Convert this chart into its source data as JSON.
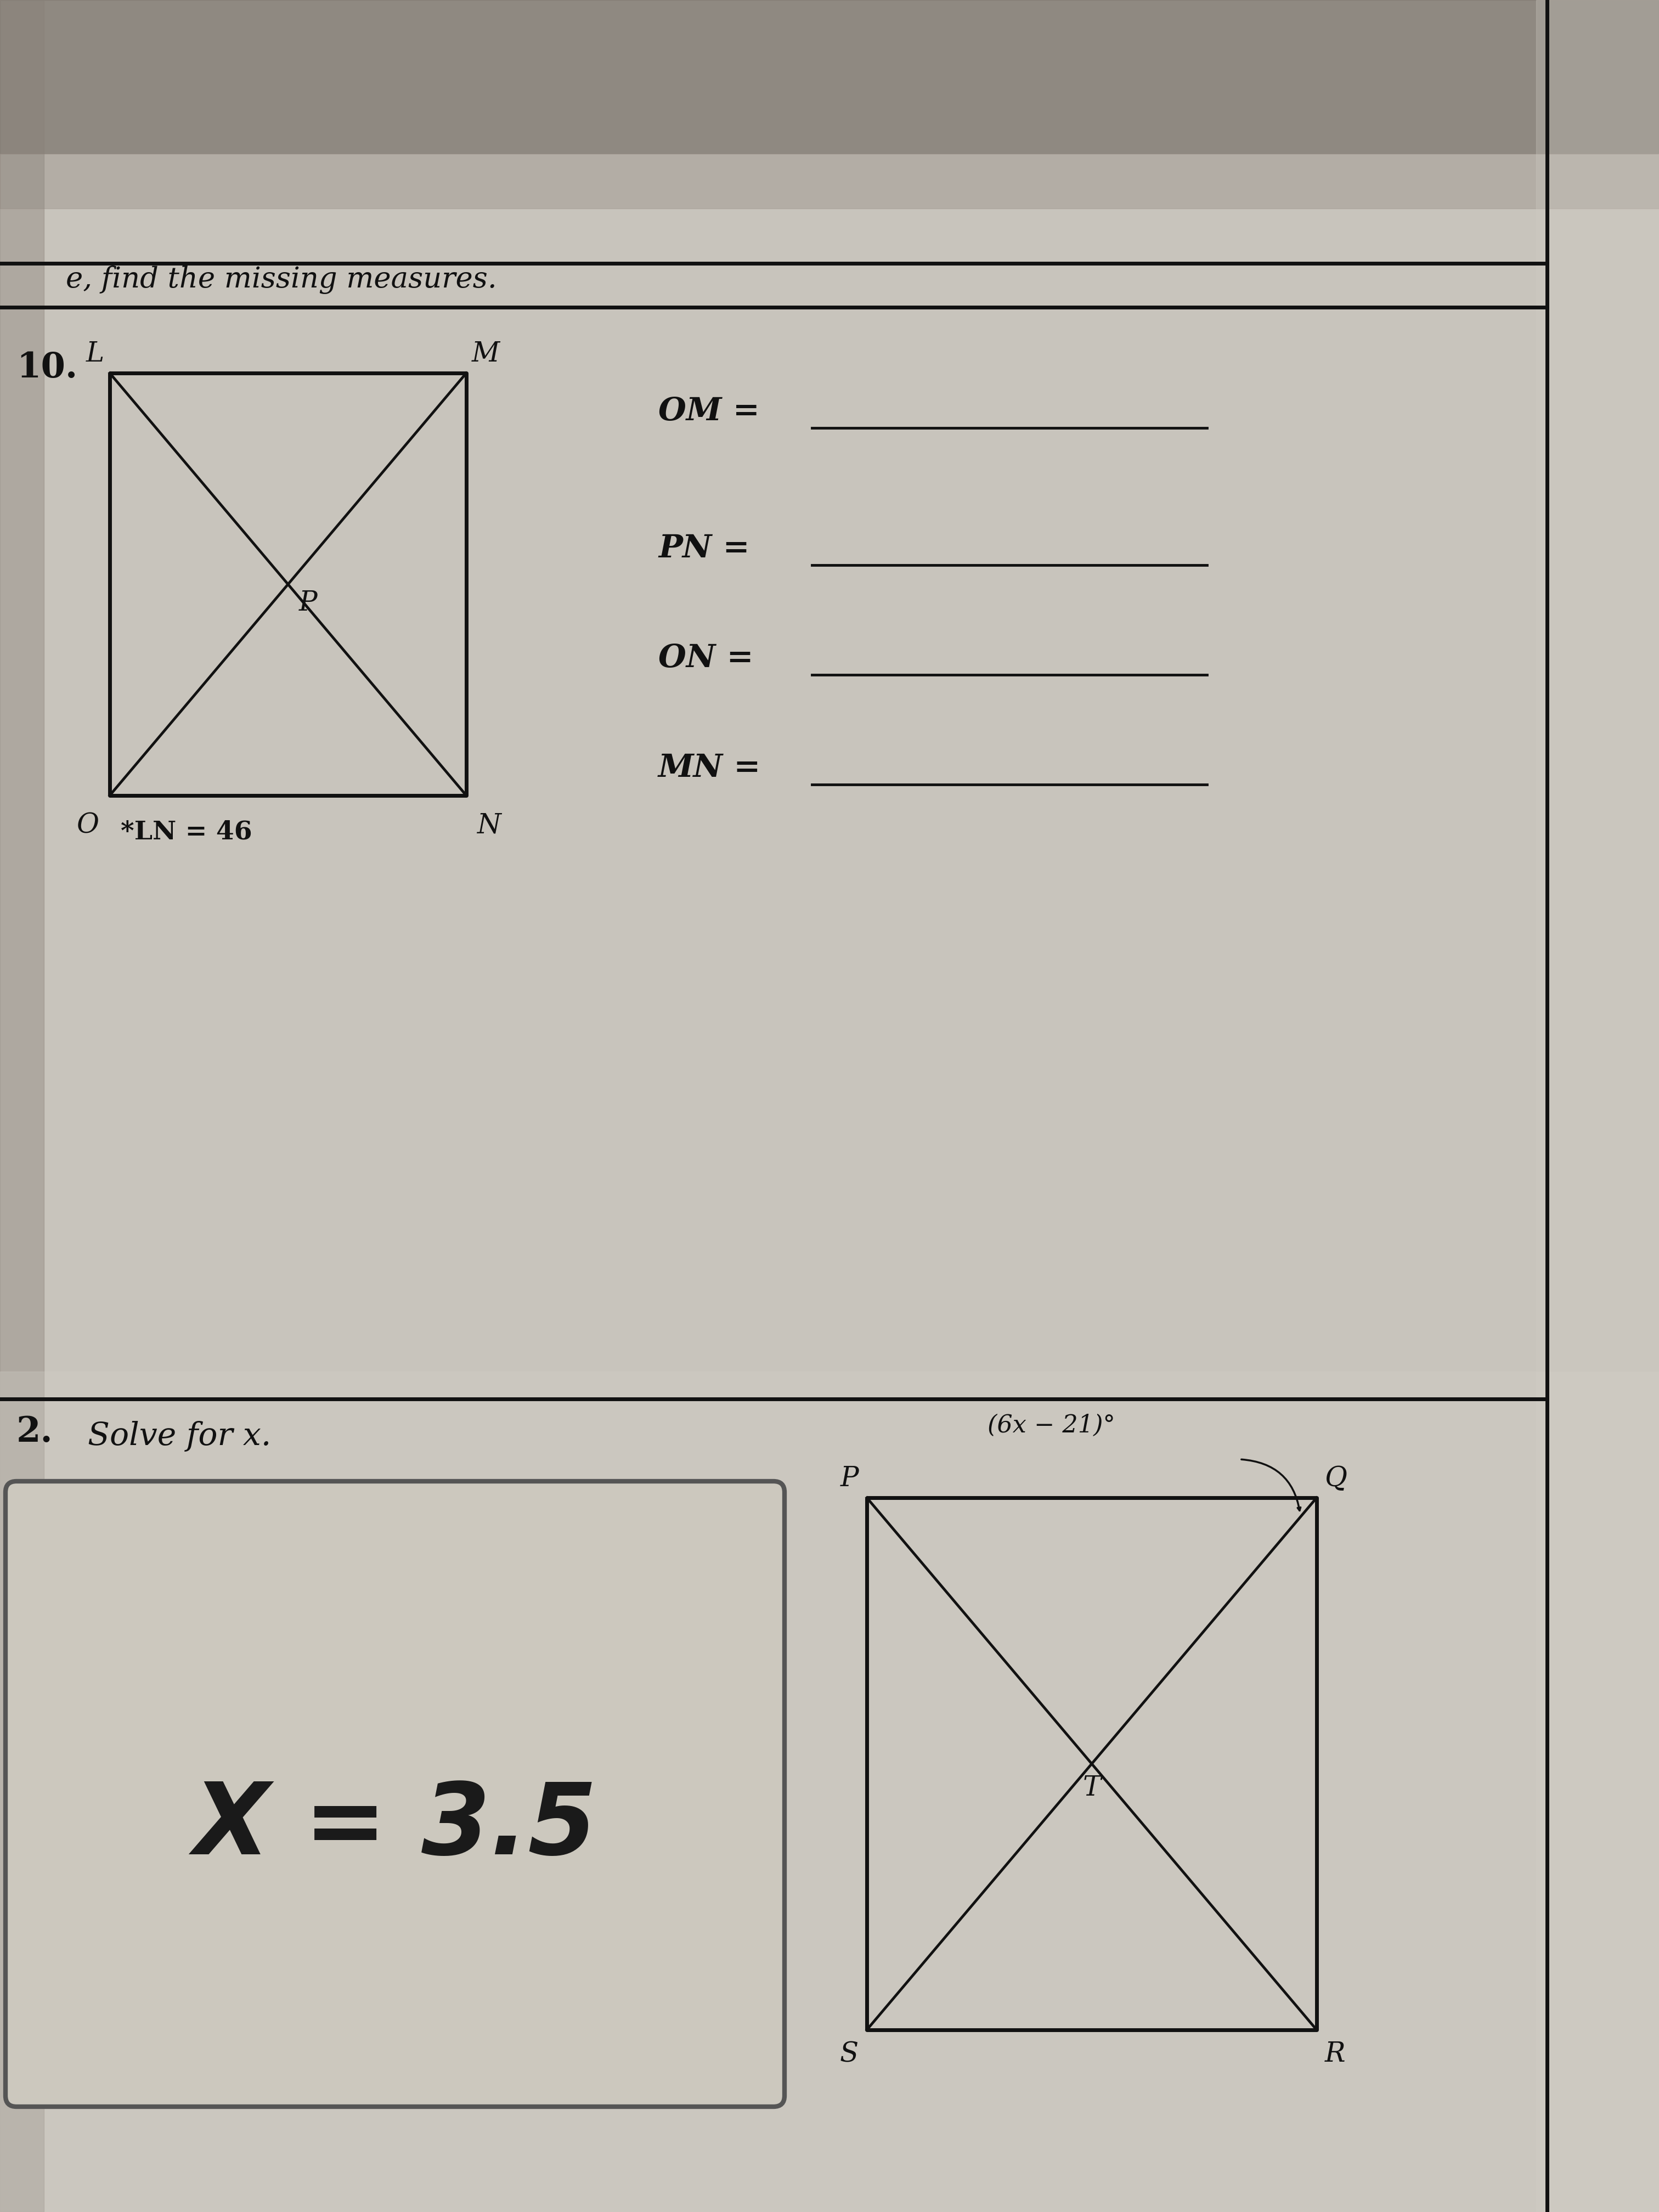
{
  "bg_color_light": "#d8d4cc",
  "bg_color_main": "#c8c4bc",
  "bg_color_dark": "#a0988c",
  "line_color": "#111111",
  "text_color": "#111111",
  "title_text": "e, find the missing measures.",
  "problem_number": "10.",
  "problem2_number": "2.",
  "problem2_text": "Solve for x.",
  "ln_note": "*LN = 46",
  "angle_label": "(6x − 21)°",
  "equations": [
    "OM =",
    "PN =",
    "ON =",
    "MN ="
  ],
  "answer_text": "X ≡ 3.5",
  "font_size_title": 38,
  "font_size_prob": 42,
  "font_size_labels": 32,
  "font_size_eq": 38,
  "font_size_answer": 130,
  "font_size_ln": 32,
  "font_size_angle": 28
}
